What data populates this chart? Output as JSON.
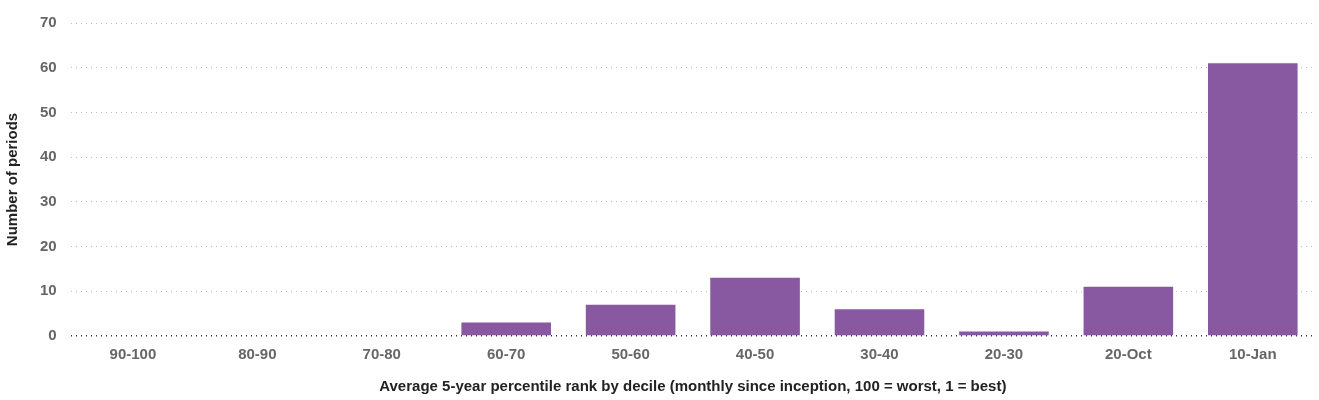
{
  "chart_data": {
    "type": "bar",
    "xlabel": "Average 5-year percentile rank by decile (monthly since inception, 100 = worst, 1 = best)",
    "ylabel": "Number of periods",
    "categories": [
      "90-100",
      "80-90",
      "70-80",
      "60-70",
      "50-60",
      "40-50",
      "30-40",
      "20-30",
      "20-Oct",
      "10-Jan"
    ],
    "values": [
      0,
      0,
      0,
      3,
      7,
      13,
      6,
      1,
      11,
      61
    ],
    "color": "#8858a0",
    "ylim": [
      0,
      70
    ],
    "yticks": [
      0,
      10,
      20,
      30,
      40,
      50,
      60,
      70
    ],
    "grid": "y",
    "legend": false
  }
}
